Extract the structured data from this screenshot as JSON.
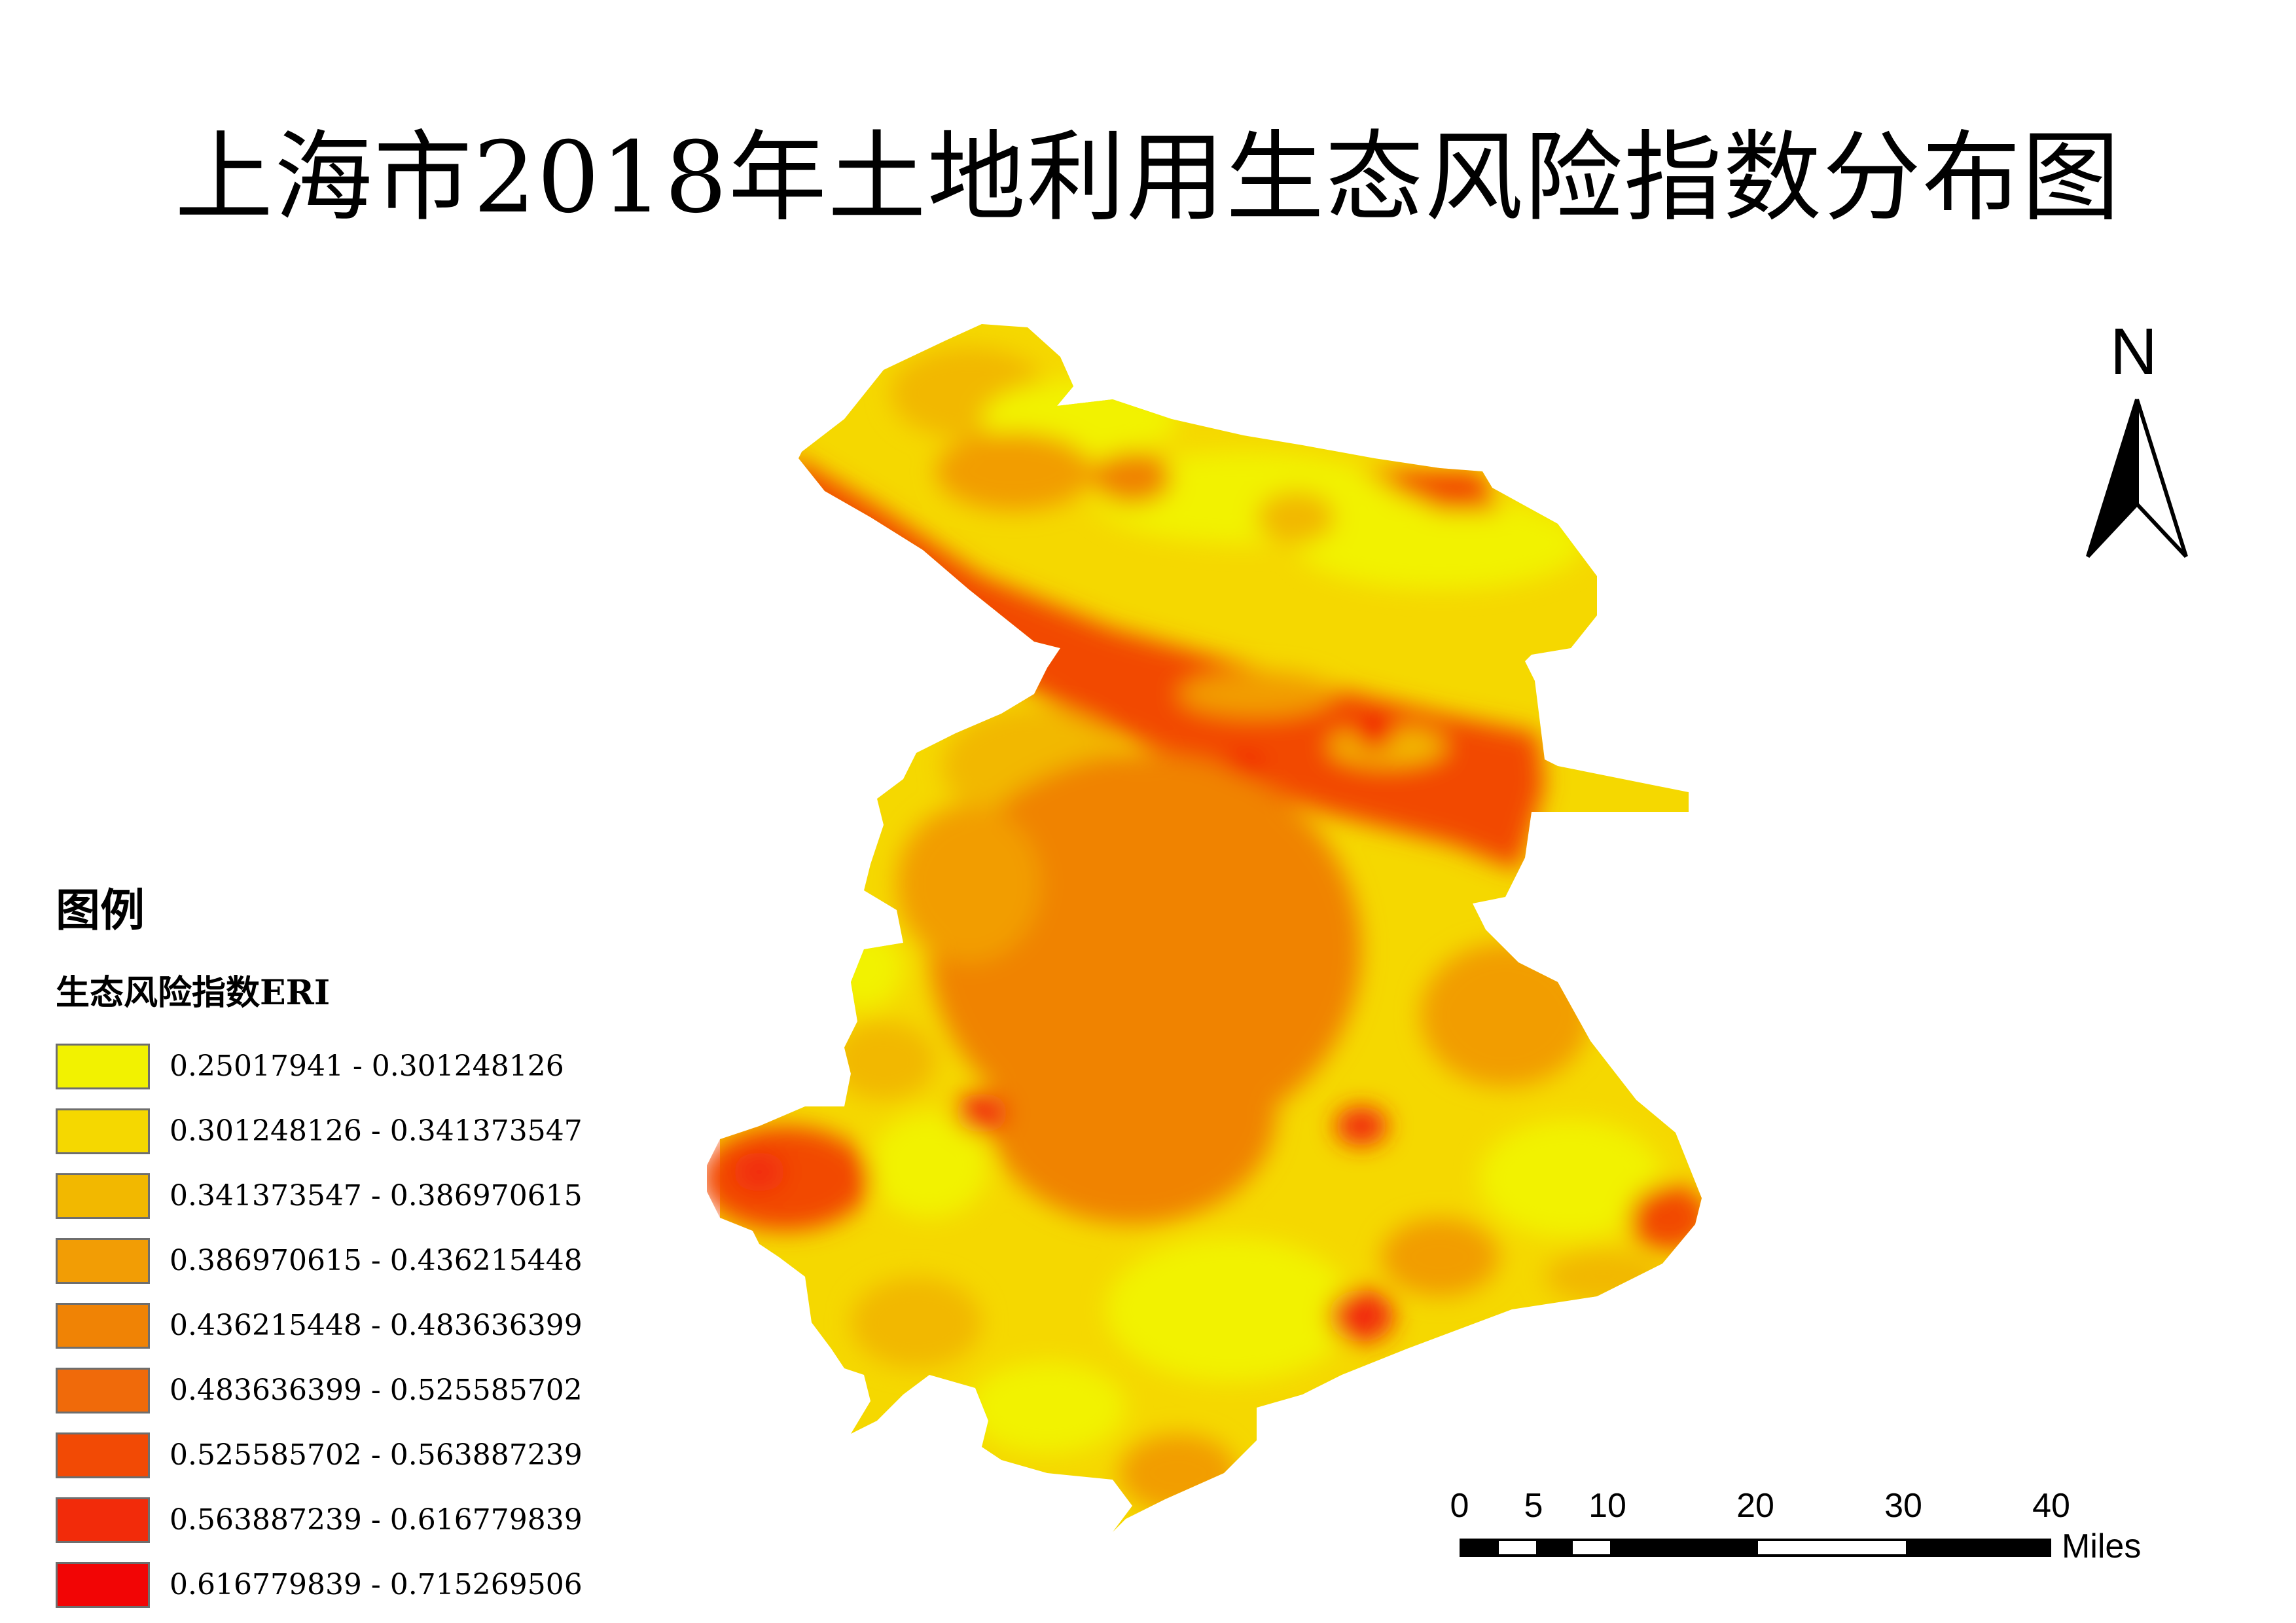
{
  "title": "上海市2018年土地利用生态风险指数分布图",
  "north_arrow": {
    "label": "N"
  },
  "legend": {
    "heading": "图例",
    "subheading": "生态风险指数ERI",
    "classes": [
      {
        "label": "0.25017941 - 0.301248126",
        "color": "#f2f200"
      },
      {
        "label": "0.301248126 - 0.341373547",
        "color": "#f5d800"
      },
      {
        "label": "0.341373547 - 0.386970615",
        "color": "#f2b800"
      },
      {
        "label": "0.386970615 - 0.436215448",
        "color": "#f29d05"
      },
      {
        "label": "0.436215448 - 0.483636399",
        "color": "#f08305"
      },
      {
        "label": "0.483636399 - 0.525585702",
        "color": "#f06a0a"
      },
      {
        "label": "0.525585702 - 0.563887239",
        "color": "#f24a05"
      },
      {
        "label": "0.563887239 - 0.616779839",
        "color": "#f22b0a"
      },
      {
        "label": "0.616779839 - 0.715269506",
        "color": "#f20505"
      }
    ]
  },
  "scale_bar": {
    "ticks": [
      "0",
      "5",
      "10",
      "20",
      "30",
      "40"
    ],
    "unit": "Miles"
  }
}
